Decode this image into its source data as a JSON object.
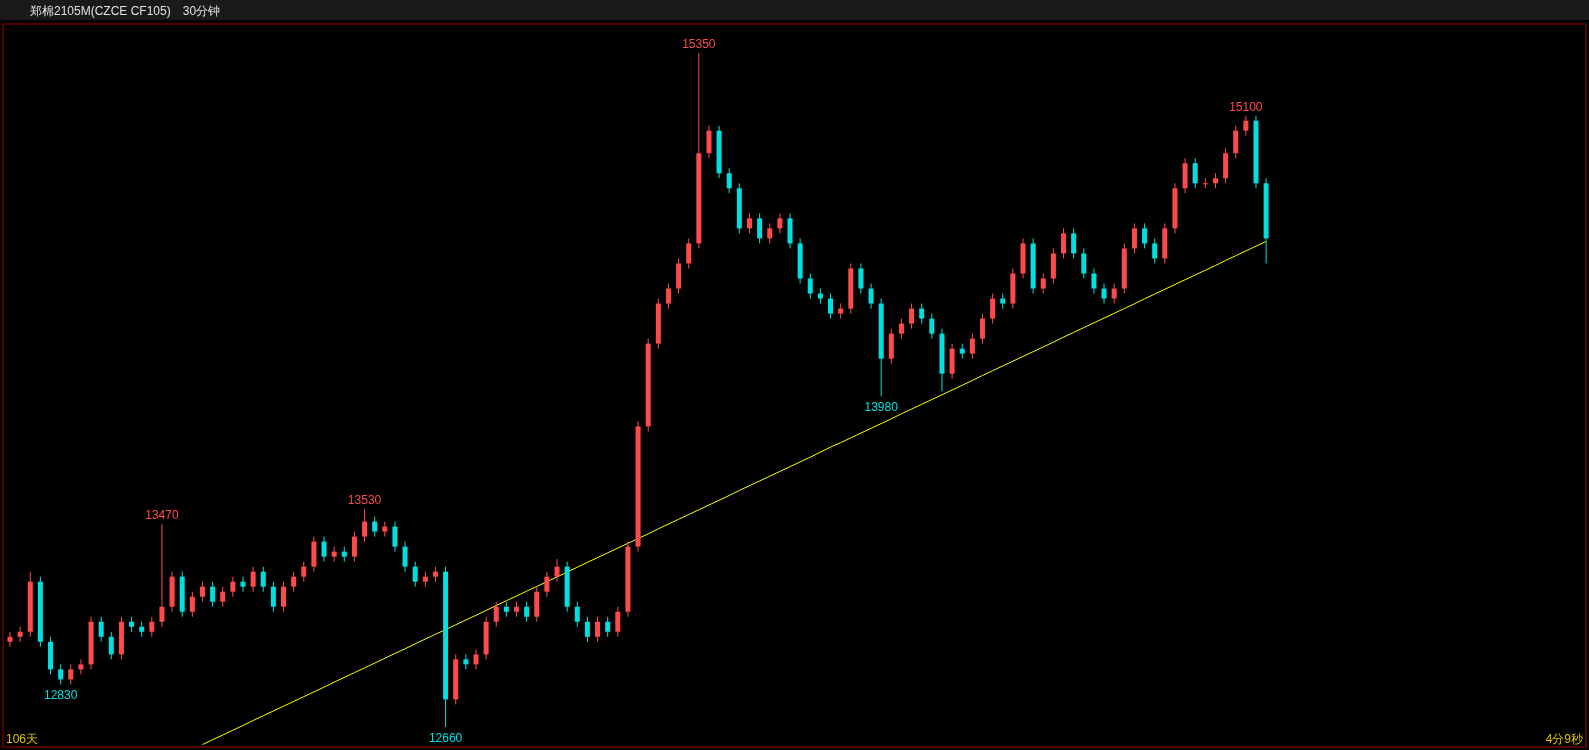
{
  "chart_data": {
    "type": "candlestick",
    "title": "郑棉2105M(CZCE CF105)",
    "subtitle": "30分钟",
    "categories": [
      null,
      null,
      null,
      null,
      null,
      null,
      null,
      null,
      null,
      null,
      null,
      null,
      null,
      null,
      null,
      null,
      null,
      null,
      null,
      null,
      null,
      null,
      null,
      null,
      null,
      null,
      null,
      null,
      null,
      null,
      null,
      null,
      null,
      null,
      null,
      null,
      null,
      null,
      null,
      null,
      null,
      null,
      null,
      null,
      null,
      null,
      null,
      null,
      null,
      null,
      null,
      null,
      null,
      null,
      null,
      null,
      null,
      null,
      null,
      null,
      null,
      null,
      null,
      null,
      null,
      null,
      null,
      null,
      null,
      null,
      null,
      null,
      null,
      null,
      null,
      null,
      null,
      null,
      null,
      null,
      null,
      null,
      null,
      null,
      null,
      null,
      null,
      null,
      null,
      null,
      null,
      null,
      null,
      null,
      null,
      null,
      null,
      null,
      null,
      null,
      null,
      null,
      null,
      null,
      null,
      null,
      null,
      null,
      null,
      null,
      null,
      null,
      null,
      null,
      null,
      null,
      null,
      null,
      null,
      null,
      null,
      null,
      null,
      null,
      null
    ],
    "ohlc": [
      [
        13000,
        13040,
        12980,
        13020
      ],
      [
        13020,
        13060,
        13000,
        13040
      ],
      [
        13040,
        13280,
        13020,
        13240
      ],
      [
        13240,
        13260,
        12980,
        13000
      ],
      [
        13000,
        13020,
        12870,
        12890
      ],
      [
        12890,
        12910,
        12830,
        12850
      ],
      [
        12850,
        12910,
        12830,
        12890
      ],
      [
        12890,
        12930,
        12870,
        12910
      ],
      [
        12910,
        13100,
        12890,
        13080
      ],
      [
        13080,
        13100,
        13000,
        13020
      ],
      [
        13020,
        13040,
        12930,
        12950
      ],
      [
        12950,
        13100,
        12930,
        13080
      ],
      [
        13080,
        13100,
        13040,
        13060
      ],
      [
        13060,
        13080,
        13020,
        13040
      ],
      [
        13040,
        13100,
        13020,
        13080
      ],
      [
        13080,
        13470,
        13060,
        13140
      ],
      [
        13140,
        13280,
        13120,
        13260
      ],
      [
        13260,
        13280,
        13100,
        13120
      ],
      [
        13120,
        13200,
        13100,
        13180
      ],
      [
        13180,
        13240,
        13160,
        13220
      ],
      [
        13220,
        13240,
        13140,
        13160
      ],
      [
        13160,
        13220,
        13140,
        13200
      ],
      [
        13200,
        13260,
        13180,
        13240
      ],
      [
        13240,
        13260,
        13200,
        13220
      ],
      [
        13220,
        13300,
        13200,
        13280
      ],
      [
        13280,
        13300,
        13200,
        13220
      ],
      [
        13220,
        13240,
        13120,
        13140
      ],
      [
        13140,
        13240,
        13120,
        13220
      ],
      [
        13220,
        13280,
        13200,
        13260
      ],
      [
        13260,
        13320,
        13240,
        13300
      ],
      [
        13300,
        13420,
        13280,
        13400
      ],
      [
        13400,
        13420,
        13320,
        13340
      ],
      [
        13340,
        13380,
        13320,
        13360
      ],
      [
        13360,
        13380,
        13320,
        13340
      ],
      [
        13340,
        13440,
        13320,
        13420
      ],
      [
        13420,
        13530,
        13400,
        13480
      ],
      [
        13480,
        13500,
        13420,
        13440
      ],
      [
        13440,
        13480,
        13420,
        13460
      ],
      [
        13460,
        13480,
        13360,
        13380
      ],
      [
        13380,
        13400,
        13280,
        13300
      ],
      [
        13300,
        13320,
        13220,
        13240
      ],
      [
        13240,
        13280,
        13220,
        13260
      ],
      [
        13260,
        13300,
        13240,
        13280
      ],
      [
        13280,
        13300,
        12660,
        12770
      ],
      [
        12770,
        12950,
        12750,
        12930
      ],
      [
        12930,
        12950,
        12890,
        12910
      ],
      [
        12910,
        12970,
        12890,
        12950
      ],
      [
        12950,
        13100,
        12930,
        13080
      ],
      [
        13080,
        13160,
        13060,
        13140
      ],
      [
        13140,
        13160,
        13100,
        13120
      ],
      [
        13120,
        13160,
        13100,
        13140
      ],
      [
        13140,
        13160,
        13080,
        13100
      ],
      [
        13100,
        13220,
        13080,
        13200
      ],
      [
        13200,
        13280,
        13180,
        13260
      ],
      [
        13260,
        13330,
        13240,
        13300
      ],
      [
        13300,
        13320,
        13120,
        13140
      ],
      [
        13140,
        13160,
        13060,
        13080
      ],
      [
        13080,
        13100,
        13000,
        13020
      ],
      [
        13020,
        13100,
        13000,
        13080
      ],
      [
        13080,
        13100,
        13020,
        13040
      ],
      [
        13040,
        13140,
        13020,
        13120
      ],
      [
        13120,
        13400,
        13100,
        13380
      ],
      [
        13380,
        13880,
        13360,
        13860
      ],
      [
        13860,
        14210,
        13840,
        14190
      ],
      [
        14190,
        14370,
        14170,
        14350
      ],
      [
        14350,
        14430,
        14330,
        14410
      ],
      [
        14410,
        14530,
        14390,
        14510
      ],
      [
        14510,
        14610,
        14490,
        14590
      ],
      [
        14590,
        15350,
        14570,
        14950
      ],
      [
        14950,
        15060,
        14930,
        15040
      ],
      [
        15040,
        15060,
        14850,
        14870
      ],
      [
        14870,
        14890,
        14790,
        14810
      ],
      [
        14810,
        14830,
        14630,
        14650
      ],
      [
        14650,
        14710,
        14630,
        14690
      ],
      [
        14690,
        14710,
        14590,
        14610
      ],
      [
        14610,
        14670,
        14590,
        14650
      ],
      [
        14650,
        14710,
        14630,
        14690
      ],
      [
        14690,
        14710,
        14570,
        14590
      ],
      [
        14590,
        14610,
        14430,
        14450
      ],
      [
        14450,
        14470,
        14370,
        14390
      ],
      [
        14390,
        14410,
        14350,
        14370
      ],
      [
        14370,
        14390,
        14290,
        14310
      ],
      [
        14310,
        14350,
        14290,
        14330
      ],
      [
        14330,
        14510,
        14310,
        14490
      ],
      [
        14490,
        14510,
        14390,
        14410
      ],
      [
        14410,
        14430,
        14330,
        14350
      ],
      [
        14350,
        14370,
        13980,
        14130
      ],
      [
        14130,
        14250,
        14110,
        14230
      ],
      [
        14230,
        14290,
        14210,
        14270
      ],
      [
        14270,
        14350,
        14250,
        14330
      ],
      [
        14330,
        14350,
        14270,
        14290
      ],
      [
        14290,
        14310,
        14210,
        14230
      ],
      [
        14230,
        14250,
        14000,
        14070
      ],
      [
        14070,
        14190,
        14050,
        14170
      ],
      [
        14170,
        14190,
        14130,
        14150
      ],
      [
        14150,
        14230,
        14130,
        14210
      ],
      [
        14210,
        14310,
        14190,
        14290
      ],
      [
        14290,
        14390,
        14270,
        14370
      ],
      [
        14370,
        14390,
        14330,
        14350
      ],
      [
        14350,
        14490,
        14330,
        14470
      ],
      [
        14470,
        14610,
        14450,
        14590
      ],
      [
        14590,
        14610,
        14390,
        14410
      ],
      [
        14410,
        14470,
        14390,
        14450
      ],
      [
        14450,
        14570,
        14430,
        14550
      ],
      [
        14550,
        14650,
        14530,
        14630
      ],
      [
        14630,
        14650,
        14530,
        14550
      ],
      [
        14550,
        14570,
        14450,
        14470
      ],
      [
        14470,
        14490,
        14390,
        14410
      ],
      [
        14410,
        14430,
        14350,
        14370
      ],
      [
        14370,
        14430,
        14350,
        14410
      ],
      [
        14410,
        14590,
        14390,
        14570
      ],
      [
        14570,
        14670,
        14550,
        14650
      ],
      [
        14650,
        14670,
        14570,
        14590
      ],
      [
        14590,
        14610,
        14510,
        14530
      ],
      [
        14530,
        14670,
        14510,
        14650
      ],
      [
        14650,
        14830,
        14630,
        14810
      ],
      [
        14810,
        14930,
        14790,
        14910
      ],
      [
        14910,
        14930,
        14810,
        14830
      ],
      [
        14830,
        14850,
        14810,
        14830
      ],
      [
        14830,
        14870,
        14810,
        14850
      ],
      [
        14850,
        14970,
        14830,
        14950
      ],
      [
        14950,
        15060,
        14930,
        15040
      ],
      [
        15040,
        15100,
        15020,
        15080
      ],
      [
        15080,
        15100,
        14810,
        14830
      ],
      [
        14830,
        14850,
        14510,
        14610
      ]
    ],
    "colors": [
      "#ff4a4a",
      "#ff4a4a",
      "#ff4a4a",
      "#00e0e0",
      "#00e0e0",
      "#00e0e0",
      "#ff4a4a",
      "#ff4a4a",
      "#ff4a4a",
      "#00e0e0",
      "#00e0e0",
      "#ff4a4a",
      "#00e0e0",
      "#00e0e0",
      "#ff4a4a",
      "#ff4a4a",
      "#ff4a4a",
      "#00e0e0",
      "#ff4a4a",
      "#ff4a4a",
      "#00e0e0",
      "#ff4a4a",
      "#ff4a4a",
      "#00e0e0",
      "#ff4a4a",
      "#00e0e0",
      "#00e0e0",
      "#ff4a4a",
      "#ff4a4a",
      "#ff4a4a",
      "#ff4a4a",
      "#00e0e0",
      "#ff4a4a",
      "#00e0e0",
      "#ff4a4a",
      "#ff4a4a",
      "#00e0e0",
      "#ff4a4a",
      "#00e0e0",
      "#00e0e0",
      "#00e0e0",
      "#ff4a4a",
      "#ff4a4a",
      "#00e0e0",
      "#ff4a4a",
      "#00e0e0",
      "#ff4a4a",
      "#ff4a4a",
      "#ff4a4a",
      "#00e0e0",
      "#ff4a4a",
      "#00e0e0",
      "#ff4a4a",
      "#ff4a4a",
      "#ff4a4a",
      "#00e0e0",
      "#00e0e0",
      "#00e0e0",
      "#ff4a4a",
      "#00e0e0",
      "#ff4a4a",
      "#ff4a4a",
      "#ff4a4a",
      "#ff4a4a",
      "#ff4a4a",
      "#ff4a4a",
      "#ff4a4a",
      "#ff4a4a",
      "#ff4a4a",
      "#ff4a4a",
      "#00e0e0",
      "#00e0e0",
      "#00e0e0",
      "#ff4a4a",
      "#00e0e0",
      "#ff4a4a",
      "#ff4a4a",
      "#00e0e0",
      "#00e0e0",
      "#00e0e0",
      "#00e0e0",
      "#00e0e0",
      "#ff4a4a",
      "#ff4a4a",
      "#00e0e0",
      "#00e0e0",
      "#00e0e0",
      "#ff4a4a",
      "#ff4a4a",
      "#ff4a4a",
      "#00e0e0",
      "#00e0e0",
      "#00e0e0",
      "#ff4a4a",
      "#00e0e0",
      "#ff4a4a",
      "#ff4a4a",
      "#ff4a4a",
      "#00e0e0",
      "#ff4a4a",
      "#ff4a4a",
      "#00e0e0",
      "#ff4a4a",
      "#ff4a4a",
      "#ff4a4a",
      "#00e0e0",
      "#00e0e0",
      "#00e0e0",
      "#00e0e0",
      "#ff4a4a",
      "#ff4a4a",
      "#ff4a4a",
      "#00e0e0",
      "#00e0e0",
      "#ff4a4a",
      "#ff4a4a",
      "#ff4a4a",
      "#00e0e0",
      "#ff4a4a",
      "#ff4a4a",
      "#ff4a4a",
      "#ff4a4a",
      "#ff4a4a",
      "#00e0e0",
      "#00e0e0"
    ],
    "series": [
      {
        "type": "line",
        "color": "#ffff00",
        "values": [
          null,
          null,
          null,
          null,
          null,
          null,
          null,
          null,
          null,
          null,
          null,
          null,
          null,
          null,
          null,
          null,
          null,
          null,
          null,
          12590,
          12609,
          12628,
          12647,
          12666,
          12686,
          12705,
          12724,
          12743,
          12762,
          12781,
          12800,
          12819,
          12839,
          12858,
          12877,
          12896,
          12915,
          12934,
          12954,
          12972,
          12992,
          13011,
          13030,
          13049,
          13068,
          13087,
          13106,
          13125,
          13145,
          13164,
          13183,
          13202,
          13221,
          13240,
          13259,
          13278,
          13298,
          13317,
          13336,
          13355,
          13374,
          13393,
          13412,
          13431,
          13451,
          13470,
          13489,
          13508,
          13527,
          13546,
          13565,
          13584,
          13604,
          13623,
          13642,
          13661,
          13680,
          13699,
          13718,
          13737,
          13757,
          13777,
          13795,
          13814,
          13833,
          13852,
          13871,
          13890,
          13910,
          13929,
          13948,
          13967,
          13986,
          14005,
          14024,
          14043,
          14063,
          14082,
          14101,
          14120,
          14139,
          14158,
          14177,
          14196,
          14216,
          14235,
          14254,
          14273,
          14292,
          14311,
          14330,
          14349,
          14369,
          14388,
          14407,
          14426,
          14445,
          14464,
          14483,
          14502,
          14522,
          14541,
          14560,
          14579,
          14598
        ]
      }
    ],
    "annotations": [
      {
        "text": "15350",
        "y": 15350
      },
      {
        "text": "12660",
        "y": 12660
      },
      {
        "text": "13470",
        "y": 13470
      },
      {
        "text": "13530",
        "y": 13530
      },
      {
        "text": "12830",
        "y": 12830
      },
      {
        "text": "13980",
        "y": 13980
      },
      {
        "text": "15100",
        "y": 15100
      },
      "106天",
      "4分9秒"
    ]
  }
}
